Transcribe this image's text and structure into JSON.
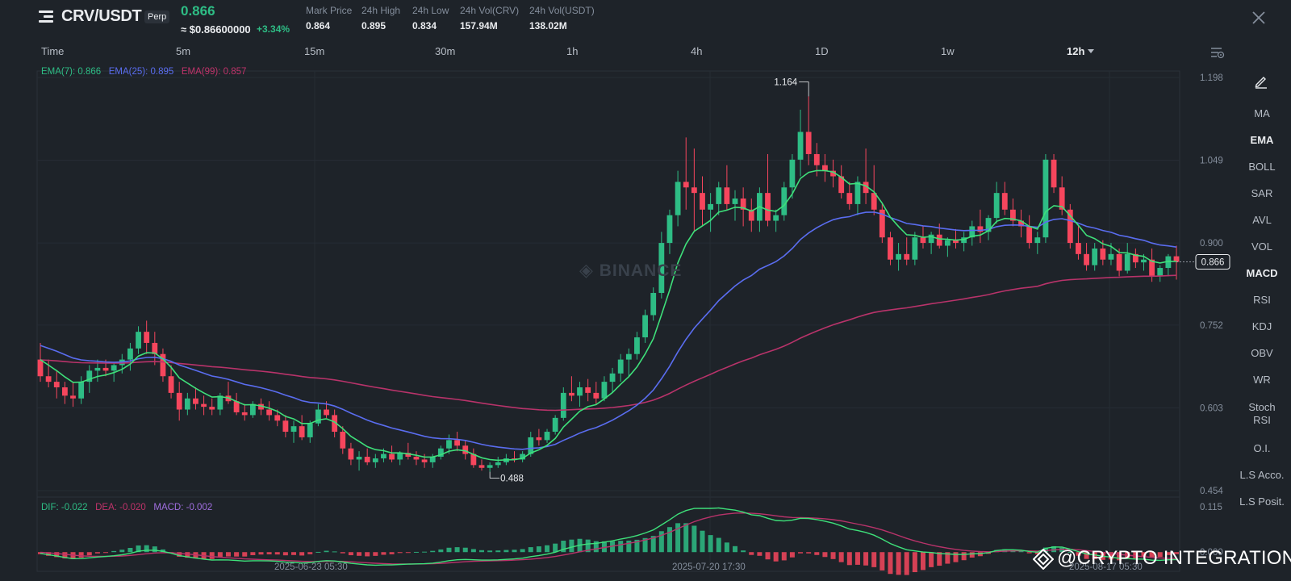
{
  "header": {
    "pair": "CRV/USDT",
    "badge": "Perp",
    "last_price": "0.866",
    "usd_price": "≈ $0.86600000",
    "change_pct": "+3.34%",
    "stats": [
      {
        "label": "Mark Price",
        "value": "0.864"
      },
      {
        "label": "24h High",
        "value": "0.895"
      },
      {
        "label": "24h Low",
        "value": "0.834"
      },
      {
        "label": "24h Vol(CRV)",
        "value": "157.94M"
      },
      {
        "label": "24h Vol(USDT)",
        "value": "138.02M"
      }
    ],
    "colors": {
      "up": "#2ebd85",
      "down": "#f6465d"
    }
  },
  "timeframes": {
    "items": [
      "Time",
      "5m",
      "15m",
      "30m",
      "1h",
      "4h",
      "1D",
      "1w"
    ],
    "selected": "12h"
  },
  "legend": {
    "ema7": "EMA(7): 0.866",
    "ema25": "EMA(25): 0.895",
    "ema99": "EMA(99): 0.857",
    "dif": "DIF: -0.022",
    "dea": "DEA: -0.020",
    "macd": "MACD: -0.002"
  },
  "indicators": {
    "items": [
      "MA",
      "EMA",
      "BOLL",
      "SAR",
      "AVL",
      "VOL",
      "MACD",
      "RSI",
      "KDJ",
      "OBV",
      "WR",
      "Stoch RSI",
      "O.I.",
      "L.S Acco.",
      "L.S Posit."
    ],
    "active": [
      "EMA",
      "MACD"
    ]
  },
  "watermark": "BINANCE",
  "promo": "@CRYPTO INTEGRATION",
  "chart_data": {
    "type": "candlestick",
    "interval": "12h",
    "price_axis": {
      "ticks": [
        "1.198",
        "1.049",
        "0.900",
        "0.752",
        "0.603",
        "0.454"
      ],
      "range": [
        0.454,
        1.198
      ]
    },
    "macd_axis": {
      "ticks": [
        "0.115",
        "0.000"
      ],
      "range": [
        -0.02,
        0.115
      ]
    },
    "time_labels": [
      "2025-06-23 05:30",
      "2025-07-20 17:30",
      "2025-08-17 05:30"
    ],
    "annotations": {
      "high": "1.164",
      "low": "0.488"
    },
    "current_price_tag": "0.866",
    "candles": [
      [
        0.69,
        0.72,
        0.65,
        0.66
      ],
      [
        0.66,
        0.69,
        0.64,
        0.65
      ],
      [
        0.65,
        0.67,
        0.62,
        0.64
      ],
      [
        0.64,
        0.65,
        0.61,
        0.625
      ],
      [
        0.625,
        0.65,
        0.605,
        0.62
      ],
      [
        0.62,
        0.66,
        0.61,
        0.65
      ],
      [
        0.65,
        0.68,
        0.63,
        0.67
      ],
      [
        0.67,
        0.69,
        0.65,
        0.675
      ],
      [
        0.675,
        0.69,
        0.66,
        0.67
      ],
      [
        0.67,
        0.685,
        0.65,
        0.68
      ],
      [
        0.68,
        0.7,
        0.665,
        0.69
      ],
      [
        0.69,
        0.72,
        0.67,
        0.71
      ],
      [
        0.71,
        0.75,
        0.7,
        0.74
      ],
      [
        0.74,
        0.76,
        0.7,
        0.72
      ],
      [
        0.72,
        0.74,
        0.68,
        0.7
      ],
      [
        0.7,
        0.71,
        0.65,
        0.66
      ],
      [
        0.66,
        0.68,
        0.62,
        0.63
      ],
      [
        0.63,
        0.65,
        0.58,
        0.6
      ],
      [
        0.6,
        0.63,
        0.59,
        0.62
      ],
      [
        0.62,
        0.64,
        0.6,
        0.61
      ],
      [
        0.61,
        0.625,
        0.59,
        0.605
      ],
      [
        0.605,
        0.62,
        0.59,
        0.6
      ],
      [
        0.6,
        0.63,
        0.59,
        0.625
      ],
      [
        0.625,
        0.65,
        0.61,
        0.615
      ],
      [
        0.615,
        0.63,
        0.59,
        0.595
      ],
      [
        0.595,
        0.61,
        0.58,
        0.59
      ],
      [
        0.59,
        0.615,
        0.585,
        0.61
      ],
      [
        0.61,
        0.62,
        0.59,
        0.6
      ],
      [
        0.6,
        0.615,
        0.58,
        0.59
      ],
      [
        0.59,
        0.6,
        0.57,
        0.58
      ],
      [
        0.58,
        0.59,
        0.55,
        0.56
      ],
      [
        0.56,
        0.58,
        0.54,
        0.57
      ],
      [
        0.57,
        0.59,
        0.545,
        0.55
      ],
      [
        0.55,
        0.58,
        0.54,
        0.575
      ],
      [
        0.575,
        0.61,
        0.57,
        0.6
      ],
      [
        0.6,
        0.615,
        0.585,
        0.59
      ],
      [
        0.59,
        0.6,
        0.55,
        0.56
      ],
      [
        0.56,
        0.57,
        0.52,
        0.53
      ],
      [
        0.53,
        0.54,
        0.5,
        0.51
      ],
      [
        0.51,
        0.525,
        0.49,
        0.515
      ],
      [
        0.515,
        0.53,
        0.5,
        0.505
      ],
      [
        0.505,
        0.52,
        0.495,
        0.512
      ],
      [
        0.512,
        0.53,
        0.505,
        0.52
      ],
      [
        0.52,
        0.535,
        0.505,
        0.51
      ],
      [
        0.51,
        0.525,
        0.5,
        0.522
      ],
      [
        0.522,
        0.54,
        0.51,
        0.515
      ],
      [
        0.515,
        0.525,
        0.5,
        0.51
      ],
      [
        0.51,
        0.52,
        0.495,
        0.505
      ],
      [
        0.505,
        0.52,
        0.495,
        0.515
      ],
      [
        0.515,
        0.535,
        0.51,
        0.53
      ],
      [
        0.53,
        0.555,
        0.52,
        0.545
      ],
      [
        0.545,
        0.56,
        0.525,
        0.535
      ],
      [
        0.535,
        0.545,
        0.51,
        0.52
      ],
      [
        0.52,
        0.53,
        0.495,
        0.5
      ],
      [
        0.5,
        0.51,
        0.49,
        0.495
      ],
      [
        0.495,
        0.505,
        0.488,
        0.5
      ],
      [
        0.5,
        0.515,
        0.495,
        0.505
      ],
      [
        0.505,
        0.52,
        0.5,
        0.512
      ],
      [
        0.512,
        0.525,
        0.505,
        0.51
      ],
      [
        0.51,
        0.525,
        0.505,
        0.52
      ],
      [
        0.52,
        0.56,
        0.515,
        0.55
      ],
      [
        0.55,
        0.565,
        0.535,
        0.545
      ],
      [
        0.545,
        0.565,
        0.54,
        0.56
      ],
      [
        0.56,
        0.59,
        0.555,
        0.585
      ],
      [
        0.585,
        0.64,
        0.58,
        0.63
      ],
      [
        0.63,
        0.66,
        0.615,
        0.625
      ],
      [
        0.625,
        0.65,
        0.605,
        0.64
      ],
      [
        0.64,
        0.655,
        0.615,
        0.63
      ],
      [
        0.63,
        0.65,
        0.61,
        0.62
      ],
      [
        0.62,
        0.66,
        0.615,
        0.65
      ],
      [
        0.65,
        0.675,
        0.63,
        0.665
      ],
      [
        0.665,
        0.7,
        0.65,
        0.69
      ],
      [
        0.69,
        0.71,
        0.66,
        0.7
      ],
      [
        0.7,
        0.74,
        0.69,
        0.73
      ],
      [
        0.73,
        0.78,
        0.72,
        0.77
      ],
      [
        0.77,
        0.82,
        0.76,
        0.81
      ],
      [
        0.81,
        0.92,
        0.8,
        0.9
      ],
      [
        0.9,
        0.96,
        0.88,
        0.95
      ],
      [
        0.95,
        1.03,
        0.93,
        1.01
      ],
      [
        1.01,
        1.09,
        0.96,
        1.0
      ],
      [
        1.0,
        1.07,
        0.92,
        0.99
      ],
      [
        0.99,
        1.02,
        0.93,
        0.96
      ],
      [
        0.96,
        0.99,
        0.92,
        0.97
      ],
      [
        0.97,
        1.01,
        0.95,
        1.0
      ],
      [
        1.0,
        1.04,
        0.96,
        0.97
      ],
      [
        0.97,
        0.995,
        0.94,
        0.98
      ],
      [
        0.98,
        1.0,
        0.93,
        0.96
      ],
      [
        0.96,
        0.98,
        0.92,
        0.94
      ],
      [
        0.94,
        1.0,
        0.92,
        0.99
      ],
      [
        0.99,
        1.06,
        0.93,
        0.94
      ],
      [
        0.94,
        0.96,
        0.92,
        0.95
      ],
      [
        0.95,
        1.01,
        0.94,
        1.0
      ],
      [
        1.0,
        1.06,
        0.98,
        1.05
      ],
      [
        1.05,
        1.14,
        1.02,
        1.1
      ],
      [
        1.1,
        1.164,
        1.04,
        1.06
      ],
      [
        1.06,
        1.08,
        1.02,
        1.04
      ],
      [
        1.04,
        1.06,
        1.01,
        1.03
      ],
      [
        1.03,
        1.05,
        1.0,
        1.02
      ],
      [
        1.02,
        1.04,
        0.98,
        0.99
      ],
      [
        0.99,
        1.01,
        0.96,
        0.97
      ],
      [
        0.97,
        1.02,
        0.95,
        1.01
      ],
      [
        1.01,
        1.07,
        0.97,
        0.99
      ],
      [
        0.99,
        1.04,
        0.95,
        0.96
      ],
      [
        0.96,
        0.97,
        0.9,
        0.91
      ],
      [
        0.91,
        0.92,
        0.86,
        0.87
      ],
      [
        0.87,
        0.9,
        0.85,
        0.88
      ],
      [
        0.88,
        0.91,
        0.86,
        0.87
      ],
      [
        0.87,
        0.92,
        0.86,
        0.91
      ],
      [
        0.91,
        0.93,
        0.89,
        0.9
      ],
      [
        0.9,
        0.92,
        0.88,
        0.915
      ],
      [
        0.915,
        0.935,
        0.89,
        0.895
      ],
      [
        0.895,
        0.91,
        0.875,
        0.905
      ],
      [
        0.905,
        0.925,
        0.89,
        0.9
      ],
      [
        0.9,
        0.92,
        0.885,
        0.91
      ],
      [
        0.91,
        0.94,
        0.895,
        0.93
      ],
      [
        0.93,
        0.96,
        0.9,
        0.92
      ],
      [
        0.92,
        0.95,
        0.905,
        0.945
      ],
      [
        0.945,
        1.01,
        0.935,
        0.99
      ],
      [
        0.99,
        1.01,
        0.95,
        0.96
      ],
      [
        0.96,
        0.98,
        0.93,
        0.94
      ],
      [
        0.94,
        0.96,
        0.91,
        0.93
      ],
      [
        0.93,
        0.95,
        0.89,
        0.9
      ],
      [
        0.9,
        0.92,
        0.88,
        0.91
      ],
      [
        0.91,
        1.06,
        0.9,
        1.05
      ],
      [
        1.05,
        1.06,
        0.99,
        1.0
      ],
      [
        1.0,
        1.02,
        0.95,
        0.96
      ],
      [
        0.96,
        0.97,
        0.89,
        0.9
      ],
      [
        0.9,
        0.93,
        0.87,
        0.88
      ],
      [
        0.88,
        0.9,
        0.85,
        0.86
      ],
      [
        0.86,
        0.9,
        0.85,
        0.89
      ],
      [
        0.89,
        0.905,
        0.86,
        0.87
      ],
      [
        0.87,
        0.9,
        0.86,
        0.88
      ],
      [
        0.88,
        0.89,
        0.84,
        0.85
      ],
      [
        0.85,
        0.9,
        0.845,
        0.88
      ],
      [
        0.88,
        0.89,
        0.855,
        0.865
      ],
      [
        0.865,
        0.88,
        0.85,
        0.87
      ],
      [
        0.87,
        0.89,
        0.83,
        0.84
      ],
      [
        0.84,
        0.86,
        0.83,
        0.855
      ],
      [
        0.855,
        0.88,
        0.84,
        0.876
      ],
      [
        0.876,
        0.895,
        0.834,
        0.866
      ]
    ]
  }
}
